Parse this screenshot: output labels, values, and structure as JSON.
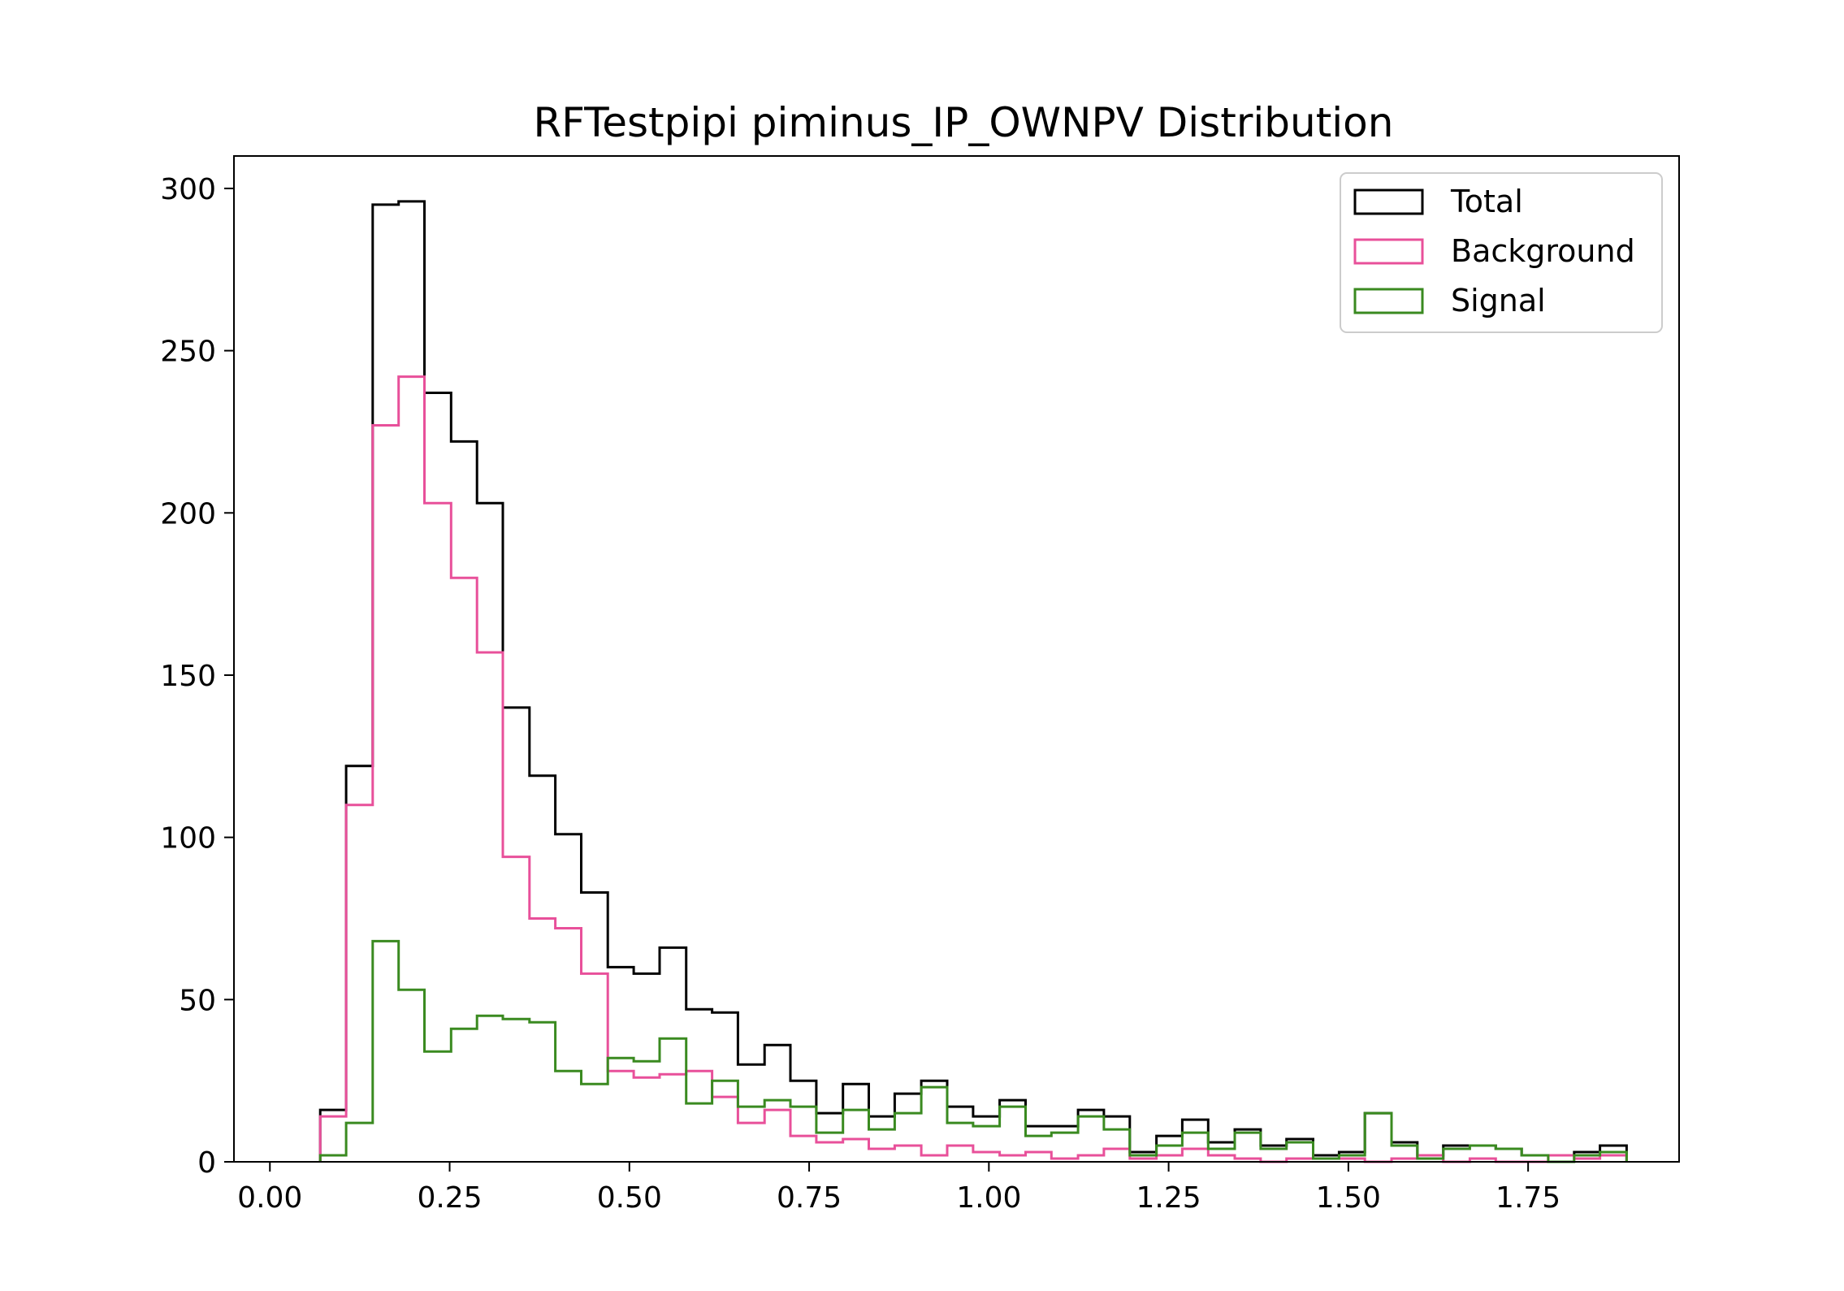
{
  "chart_data": {
    "type": "histogram",
    "title": "RFTestpipi piminus_IP_OWNPV Distribution",
    "xlabel": "",
    "ylabel": "",
    "xlim": [
      -0.05,
      1.96
    ],
    "ylim": [
      0,
      310
    ],
    "xticks": [
      "0.00",
      "0.25",
      "0.50",
      "0.75",
      "1.00",
      "1.25",
      "1.50",
      "1.75"
    ],
    "yticks": [
      "0",
      "50",
      "100",
      "150",
      "200",
      "250",
      "300"
    ],
    "legend_position": "upper right",
    "grid": false,
    "bin_edges": [
      0.07,
      0.106,
      0.143,
      0.179,
      0.215,
      0.252,
      0.288,
      0.324,
      0.361,
      0.397,
      0.433,
      0.47,
      0.506,
      0.542,
      0.579,
      0.615,
      0.651,
      0.688,
      0.724,
      0.76,
      0.797,
      0.833,
      0.869,
      0.906,
      0.942,
      0.978,
      1.015,
      1.051,
      1.087,
      1.124,
      1.16,
      1.196,
      1.233,
      1.269,
      1.305,
      1.342,
      1.378,
      1.414,
      1.451,
      1.487,
      1.523,
      1.56,
      1.596,
      1.632,
      1.669,
      1.705,
      1.741,
      1.778,
      1.814,
      1.85,
      1.887
    ],
    "series": [
      {
        "name": "Total",
        "color": "#000000",
        "values": [
          16,
          122,
          295,
          296,
          237,
          222,
          203,
          140,
          119,
          101,
          83,
          60,
          58,
          66,
          47,
          46,
          30,
          36,
          25,
          15,
          24,
          14,
          21,
          25,
          17,
          14,
          19,
          11,
          11,
          16,
          14,
          3,
          8,
          13,
          6,
          10,
          5,
          7,
          2,
          3,
          15,
          6,
          2,
          5,
          5,
          4,
          2,
          2,
          3,
          5
        ]
      },
      {
        "name": "Background",
        "color": "#e8509a",
        "values": [
          14,
          110,
          227,
          242,
          203,
          180,
          157,
          94,
          75,
          72,
          58,
          28,
          26,
          27,
          28,
          20,
          12,
          16,
          8,
          6,
          7,
          4,
          5,
          2,
          5,
          3,
          2,
          3,
          1,
          2,
          4,
          1,
          2,
          4,
          2,
          1,
          0,
          1,
          1,
          1,
          0,
          1,
          2,
          0,
          1,
          0,
          0,
          2,
          1,
          2
        ]
      },
      {
        "name": "Signal",
        "color": "#3a8a20",
        "values": [
          2,
          12,
          68,
          53,
          34,
          41,
          45,
          44,
          43,
          28,
          24,
          32,
          31,
          38,
          18,
          25,
          17,
          19,
          17,
          9,
          16,
          10,
          15,
          23,
          12,
          11,
          17,
          8,
          9,
          14,
          10,
          2,
          5,
          9,
          4,
          9,
          4,
          6,
          1,
          2,
          15,
          5,
          1,
          4,
          5,
          4,
          2,
          0,
          2,
          3
        ]
      }
    ]
  }
}
